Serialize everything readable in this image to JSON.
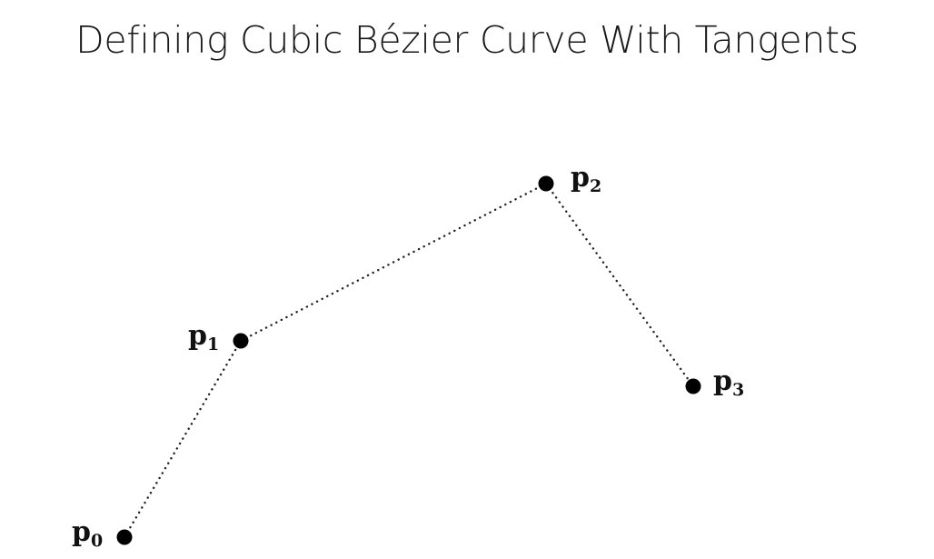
{
  "slide": {
    "title": "Defining Cubic Bézier Curve With Tangents"
  },
  "control_points": [
    {
      "id": "p0",
      "base": "p",
      "sub": "0"
    },
    {
      "id": "p1",
      "base": "p",
      "sub": "1"
    },
    {
      "id": "p2",
      "base": "p",
      "sub": "2"
    },
    {
      "id": "p3",
      "base": "p",
      "sub": "3"
    }
  ],
  "style": {
    "point_color": "#000000",
    "line_color": "#222222",
    "line_style": "dotted",
    "background": "#ffffff"
  }
}
